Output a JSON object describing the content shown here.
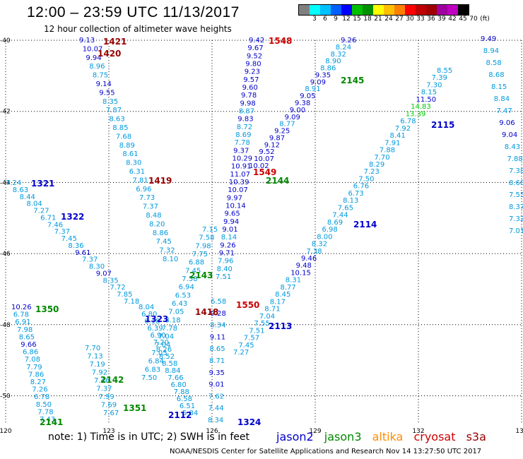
{
  "header": {
    "title": "12:00 – 23:59 UTC 11/13/2017",
    "subtitle": "12 hour collection of altimeter wave heights"
  },
  "colorbar": {
    "unit": "(ft)",
    "labels": [
      "3",
      "6",
      "9",
      "12",
      "15",
      "18",
      "21",
      "24",
      "27",
      "30",
      "33",
      "36",
      "39",
      "42",
      "45",
      "70"
    ],
    "colors": [
      "#808080",
      "#00ffff",
      "#00c0ff",
      "#0060ff",
      "#0000ff",
      "#00c000",
      "#009000",
      "#ffff00",
      "#ffc000",
      "#ff8000",
      "#ff0000",
      "#c00000",
      "#a00000",
      "#a000a0",
      "#c000c0",
      "#000000"
    ]
  },
  "axes": {
    "lon_labels": [
      "120",
      "123",
      "126",
      "129",
      "132",
      "135"
    ],
    "lat_labels": [
      "-40",
      "-42",
      "-44",
      "-46",
      "-48",
      "-50"
    ]
  },
  "satellites": {
    "jason2": {
      "label": "jason2",
      "color": "#0000cc"
    },
    "jason3": {
      "label": "jason3",
      "color": "#008800"
    },
    "altika": {
      "label": "altika",
      "color": "#ff8c00"
    },
    "cryosat": {
      "label": "cryosat",
      "color": "#cc0000"
    },
    "s3a": {
      "label": "s3a",
      "color": "#990000"
    }
  },
  "passes": [
    {
      "id": "1421",
      "sat": "s3a"
    },
    {
      "id": "1420",
      "sat": "s3a"
    },
    {
      "id": "1548",
      "sat": "cryosat"
    },
    {
      "id": "2145",
      "sat": "jason3"
    },
    {
      "id": "1419",
      "sat": "s3a"
    },
    {
      "id": "2144",
      "sat": "jason3"
    },
    {
      "id": "1549",
      "sat": "cryosat"
    },
    {
      "id": "2115",
      "sat": "jason2"
    },
    {
      "id": "1321",
      "sat": "jason2"
    },
    {
      "id": "1322",
      "sat": "jason2"
    },
    {
      "id": "2114",
      "sat": "jason2"
    },
    {
      "id": "2143",
      "sat": "jason3"
    },
    {
      "id": "1350",
      "sat": "jason3"
    },
    {
      "id": "1550",
      "sat": "cryosat"
    },
    {
      "id": "1418",
      "sat": "s3a"
    },
    {
      "id": "1323",
      "sat": "jason2"
    },
    {
      "id": "2113",
      "sat": "jason2"
    },
    {
      "id": "2142",
      "sat": "jason3"
    },
    {
      "id": "1351",
      "sat": "jason3"
    },
    {
      "id": "2112",
      "sat": "jason2"
    },
    {
      "id": "2141",
      "sat": "jason3"
    },
    {
      "id": "1324",
      "sat": "jason2"
    }
  ],
  "wave_heights": [
    "9.13",
    "10.07",
    "9.94",
    "8.96",
    "8.75",
    "9.14",
    "9.55",
    "8.35",
    "7.87",
    "8.63",
    "8.85",
    "7.68",
    "8.89",
    "8.61",
    "8.30",
    "6.31",
    "7.81",
    "6.96",
    "7.73",
    "7.37",
    "8.48",
    "8.20",
    "8.86",
    "7.45",
    "7.32",
    "8.10",
    "9.42",
    "9.67",
    "9.52",
    "9.80",
    "9.23",
    "9.57",
    "9.60",
    "9.78",
    "9.98",
    "8.87",
    "9.83",
    "8.72",
    "8.69",
    "7.78",
    "9.37",
    "10.29",
    "10.91",
    "11.07",
    "10.39",
    "10.07",
    "9.97",
    "10.14",
    "9.65",
    "9.94",
    "9.01",
    "8.14",
    "9.26",
    "9.71",
    "7.96",
    "8.40",
    "7.51",
    "9.26",
    "8.24",
    "8.32",
    "8.90",
    "8.86",
    "9.35",
    "9.09",
    "8.91",
    "9.05",
    "9.38",
    "9.00",
    "9.09",
    "8.77",
    "9.25",
    "9.87",
    "9.12",
    "9.52",
    "10.07",
    "10.02",
    "9.49",
    "8.94",
    "8.58",
    "8.68",
    "8.15",
    "8.84",
    "7.47",
    "9.06",
    "9.04",
    "8.43",
    "7.88",
    "7.38",
    "8.68",
    "7.55",
    "8.37",
    "7.32",
    "7.01",
    "8.55",
    "7.39",
    "7.30",
    "8.15",
    "11.50",
    "14.83",
    "13.39",
    "6.78",
    "7.92",
    "8.41",
    "7.91",
    "7.88",
    "7.70",
    "8.29",
    "7.23",
    "7.50",
    "6.76",
    "6.73",
    "8.13",
    "7.65",
    "7.44",
    "8.69",
    "6.98",
    "8.00",
    "8.32",
    "7.38",
    "9.46",
    "9.48",
    "10.15",
    "8.31",
    "8.77",
    "8.45",
    "8.17",
    "8.71",
    "7.04",
    "7.55",
    "7.51",
    "7.57",
    "7.45",
    "7.27",
    "7.24",
    "8.63",
    "8.44",
    "8.04",
    "7.27",
    "6.71",
    "7.46",
    "7.37",
    "7.45",
    "8.36",
    "9.61",
    "7.37",
    "8.30",
    "9.07",
    "8.35",
    "7.72",
    "7.85",
    "7.18",
    "10.26",
    "6.78",
    "6.91",
    "7.98",
    "8.65",
    "9.66",
    "6.86",
    "7.08",
    "7.79",
    "7.86",
    "8.27",
    "7.26",
    "6.78",
    "8.50",
    "7.78",
    "7.43",
    "7.70",
    "7.13",
    "7.19",
    "7.92",
    "7.46",
    "7.37",
    "7.99",
    "7.69",
    "7.67",
    "8.04",
    "6.80",
    "6.18",
    "6.39",
    "6.90",
    "7.20",
    "8.26",
    "8.52",
    "8.58",
    "8.84",
    "7.66",
    "6.80",
    "7.88",
    "6.58",
    "6.51",
    "5.84",
    "7.15",
    "7.58",
    "7.98",
    "7.75",
    "6.88",
    "7.45",
    "7.58",
    "6.94",
    "6.53",
    "6.43",
    "7.05",
    "8.18",
    "7.78",
    "7.04",
    "7.04",
    "7.05",
    "6.84",
    "6.83",
    "7.50",
    "6.58",
    "9.28",
    "8.34",
    "9.11",
    "8.65",
    "8.71",
    "9.35",
    "9.01",
    "7.62",
    "7.44",
    "8.34",
    "6.66"
  ],
  "footer": {
    "note": "note:  1) Time is in UTC;  2) SWH is in feet",
    "credit": "NOAA/NESDIS Center for Satellite Applications and Research    Nov 14 13:27:50 UTC 2017"
  }
}
